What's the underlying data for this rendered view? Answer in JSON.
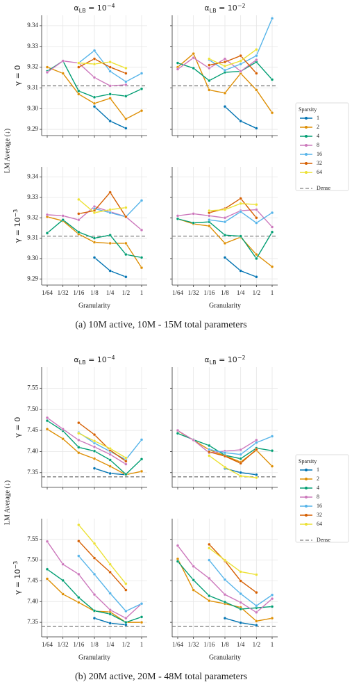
{
  "figures": [
    {
      "ylabel": "LM Average (↓)",
      "caption": "(a) 10M active, 10M - 15M total parameters"
    },
    {
      "ylabel": "LM Average (↓)",
      "caption": "(b) 20M active, 20M - 48M total parameters"
    }
  ],
  "chart_data": [
    {
      "type": "line",
      "title": {
        "main": "α",
        "sub": "LB",
        "mid": " = 10",
        "sup": "−4"
      },
      "ylabel": {
        "main": "γ = 0"
      },
      "ylim": [
        9.287,
        9.345
      ],
      "yticks": [
        9.29,
        {
          "value": 9.3,
          "label": "9.30"
        },
        9.31,
        9.32,
        9.33,
        9.34
      ],
      "grid": true,
      "series": [
        {
          "color": "#0173b2",
          "values": [
            null,
            null,
            null,
            9.301,
            9.294,
            9.2905,
            null
          ]
        },
        {
          "color": "#de8f05",
          "values": [
            9.32,
            9.317,
            9.307,
            9.3025,
            9.305,
            9.295,
            9.299
          ]
        },
        {
          "color": "#029e73",
          "values": [
            9.318,
            9.323,
            9.3085,
            9.3055,
            9.307,
            9.306,
            9.3095
          ]
        },
        {
          "color": "#cc78bc",
          "values": [
            9.3175,
            9.323,
            9.322,
            9.315,
            9.311,
            9.3115,
            null
          ]
        },
        {
          "color": "#56b4e9",
          "values": [
            null,
            null,
            9.322,
            9.328,
            9.318,
            9.313,
            9.317
          ]
        },
        {
          "color": "#d55e00",
          "values": [
            null,
            null,
            9.32,
            9.324,
            9.32,
            9.317,
            null
          ]
        },
        {
          "color": "#ece133",
          "values": [
            null,
            null,
            9.322,
            9.3215,
            9.3225,
            9.3195,
            null
          ]
        }
      ],
      "reference": {
        "value": 9.311,
        "color": "#7f7f7f"
      }
    },
    {
      "type": "line",
      "title": {
        "main": "α",
        "sub": "LB",
        "mid": " = 10",
        "sup": "−2"
      },
      "ylim": [
        9.287,
        9.345
      ],
      "yticks": [
        9.29,
        9.3,
        9.31,
        9.32,
        9.33,
        9.34
      ],
      "grid": true,
      "legend": "right",
      "legend_title": "Sparsity",
      "series": [
        {
          "name": "1",
          "color": "#0173b2",
          "values": [
            null,
            null,
            null,
            9.301,
            9.294,
            9.2905,
            null
          ]
        },
        {
          "name": "2",
          "color": "#de8f05",
          "values": [
            9.32,
            9.3265,
            9.309,
            9.3075,
            9.317,
            9.309,
            9.298
          ]
        },
        {
          "name": "4",
          "color": "#029e73",
          "values": [
            9.322,
            9.3195,
            9.3135,
            9.3175,
            9.318,
            9.3225,
            9.314
          ]
        },
        {
          "name": "8",
          "color": "#cc78bc",
          "values": [
            9.319,
            9.3245,
            9.3195,
            9.324,
            9.318,
            9.3235,
            null
          ]
        },
        {
          "name": "16",
          "color": "#56b4e9",
          "values": [
            null,
            null,
            9.3235,
            9.3185,
            9.3215,
            9.3255,
            9.3435
          ]
        },
        {
          "name": "32",
          "color": "#d55e00",
          "values": [
            null,
            null,
            9.321,
            9.3225,
            9.3255,
            9.317,
            null
          ]
        },
        {
          "name": "64",
          "color": "#ece133",
          "values": [
            null,
            null,
            9.324,
            9.3205,
            9.323,
            9.3285,
            null
          ]
        }
      ],
      "reference": {
        "name": "Dense",
        "value": 9.311,
        "color": "#7f7f7f"
      }
    },
    {
      "type": "line",
      "ylabel": {
        "main": "γ = 10",
        "sup": "−3"
      },
      "xlabel": "Granularity",
      "categories": [
        "1/64",
        "1/32",
        "1/16",
        "1/8",
        "1/4",
        "1/2",
        "1"
      ],
      "ylim": [
        9.287,
        9.345
      ],
      "yticks": [
        9.29,
        {
          "value": 9.3,
          "label": "9.30"
        },
        9.31,
        9.32,
        9.33,
        9.34
      ],
      "grid": true,
      "series": [
        {
          "color": "#0173b2",
          "values": [
            null,
            null,
            null,
            9.3005,
            9.294,
            9.291,
            null
          ]
        },
        {
          "color": "#de8f05",
          "values": [
            9.3205,
            9.3185,
            9.312,
            9.308,
            9.3075,
            9.3075,
            9.2955
          ]
        },
        {
          "color": "#029e73",
          "values": [
            9.3125,
            9.319,
            9.313,
            9.31,
            9.3115,
            9.302,
            9.3005
          ]
        },
        {
          "color": "#cc78bc",
          "values": [
            9.3215,
            9.321,
            9.319,
            9.3255,
            9.323,
            9.3205,
            9.314
          ]
        },
        {
          "color": "#56b4e9",
          "values": [
            null,
            null,
            null,
            9.3245,
            9.3225,
            9.3205,
            9.3285
          ]
        },
        {
          "color": "#d55e00",
          "values": [
            null,
            null,
            9.322,
            9.3235,
            9.3325,
            9.3205,
            null
          ]
        },
        {
          "color": "#ece133",
          "values": [
            null,
            null,
            9.329,
            9.3225,
            9.324,
            9.325,
            null
          ]
        }
      ],
      "reference": {
        "value": 9.311,
        "color": "#7f7f7f"
      }
    },
    {
      "type": "line",
      "xlabel": "Granularity",
      "categories": [
        "1/64",
        "1/32",
        "1/16",
        "1/8",
        "1/4",
        "1/2",
        "1"
      ],
      "ylim": [
        9.287,
        9.345
      ],
      "yticks": [
        9.29,
        9.3,
        9.31,
        9.32,
        9.33,
        9.34
      ],
      "grid": true,
      "series": [
        {
          "color": "#0173b2",
          "values": [
            null,
            null,
            null,
            9.3005,
            9.294,
            9.291,
            null
          ]
        },
        {
          "color": "#de8f05",
          "values": [
            9.3195,
            9.317,
            9.316,
            9.3075,
            9.3105,
            9.302,
            9.296
          ]
        },
        {
          "color": "#029e73",
          "values": [
            9.3195,
            9.3175,
            9.318,
            9.3115,
            9.311,
            9.3,
            9.313
          ]
        },
        {
          "color": "#cc78bc",
          "values": [
            9.321,
            9.322,
            9.321,
            9.32,
            9.3235,
            9.324,
            9.3155
          ]
        },
        {
          "color": "#56b4e9",
          "values": [
            null,
            null,
            9.319,
            9.318,
            9.323,
            9.3175,
            9.3225
          ]
        },
        {
          "color": "#d55e00",
          "values": [
            null,
            null,
            9.3225,
            9.3245,
            9.3295,
            9.32,
            null
          ]
        },
        {
          "color": "#ece133",
          "values": [
            null,
            null,
            9.3235,
            9.324,
            9.327,
            9.3265,
            null
          ]
        }
      ],
      "reference": {
        "value": 9.311,
        "color": "#7f7f7f"
      }
    },
    {
      "type": "line",
      "title": {
        "main": "α",
        "sub": "LB",
        "mid": " = 10",
        "sup": "−4"
      },
      "ylabel": {
        "main": "γ = 0"
      },
      "ylim": [
        7.315,
        7.6
      ],
      "yticks": [
        7.35,
        {
          "value": 7.4,
          "label": "7.40"
        },
        7.45,
        {
          "value": 7.5,
          "label": "7.50"
        },
        7.55
      ],
      "grid": true,
      "series": [
        {
          "color": "#0173b2",
          "values": [
            null,
            null,
            null,
            7.36,
            7.348,
            7.345,
            null
          ]
        },
        {
          "color": "#de8f05",
          "values": [
            7.453,
            7.43,
            7.397,
            7.383,
            7.365,
            7.345,
            7.353
          ]
        },
        {
          "color": "#029e73",
          "values": [
            7.473,
            7.449,
            7.41,
            7.401,
            7.38,
            7.346,
            7.382
          ]
        },
        {
          "color": "#cc78bc",
          "values": [
            7.48,
            7.453,
            7.427,
            7.411,
            7.393,
            7.37,
            null
          ]
        },
        {
          "color": "#56b4e9",
          "values": [
            null,
            null,
            7.445,
            7.42,
            7.4,
            7.381,
            7.428
          ]
        },
        {
          "color": "#d55e00",
          "values": [
            null,
            null,
            7.468,
            7.44,
            7.403,
            7.377,
            null
          ]
        },
        {
          "color": "#ece133",
          "values": [
            null,
            null,
            7.443,
            7.425,
            7.407,
            7.385,
            null
          ]
        }
      ],
      "reference": {
        "value": 7.34,
        "color": "#7f7f7f"
      }
    },
    {
      "type": "line",
      "title": {
        "main": "α",
        "sub": "LB",
        "mid": " = 10",
        "sup": "−2"
      },
      "ylim": [
        7.315,
        7.6
      ],
      "yticks": [
        7.35,
        7.4,
        7.45,
        7.5,
        7.55
      ],
      "grid": true,
      "legend": "right",
      "legend_title": "Sparsity",
      "series": [
        {
          "name": "1",
          "color": "#0173b2",
          "values": [
            null,
            null,
            null,
            7.36,
            7.35,
            7.345,
            null
          ]
        },
        {
          "name": "2",
          "color": "#de8f05",
          "values": [
            7.449,
            7.427,
            7.404,
            7.39,
            7.375,
            7.403,
            7.365
          ]
        },
        {
          "name": "4",
          "color": "#029e73",
          "values": [
            7.443,
            7.428,
            7.414,
            7.391,
            7.383,
            7.408,
            7.402
          ]
        },
        {
          "name": "8",
          "color": "#cc78bc",
          "values": [
            7.45,
            7.427,
            7.397,
            7.401,
            7.404,
            7.427,
            null
          ]
        },
        {
          "name": "16",
          "color": "#56b4e9",
          "values": [
            null,
            null,
            7.405,
            7.397,
            7.393,
            7.421,
            7.436
          ]
        },
        {
          "name": "32",
          "color": "#d55e00",
          "values": [
            null,
            null,
            7.399,
            7.389,
            7.372,
            7.405,
            null
          ]
        },
        {
          "name": "64",
          "color": "#ece133",
          "values": [
            null,
            null,
            7.39,
            7.363,
            7.342,
            7.338,
            null
          ]
        }
      ],
      "reference": {
        "name": "Dense",
        "value": 7.34,
        "color": "#7f7f7f"
      }
    },
    {
      "type": "line",
      "ylabel": {
        "main": "γ = 10",
        "sup": "−3"
      },
      "xlabel": "Granularity",
      "categories": [
        "1/64",
        "1/32",
        "1/16",
        "1/8",
        "1/4",
        "1/2",
        "1"
      ],
      "ylim": [
        7.315,
        7.6
      ],
      "yticks": [
        7.35,
        {
          "value": 7.4,
          "label": "7.40"
        },
        7.45,
        {
          "value": 7.5,
          "label": "7.50"
        },
        7.55
      ],
      "grid": true,
      "series": [
        {
          "color": "#0173b2",
          "values": [
            null,
            null,
            null,
            7.36,
            7.348,
            7.344,
            null
          ]
        },
        {
          "color": "#de8f05",
          "values": [
            7.455,
            7.418,
            7.398,
            7.377,
            7.375,
            7.35,
            7.35
          ]
        },
        {
          "color": "#029e73",
          "values": [
            7.478,
            7.451,
            7.41,
            7.378,
            7.37,
            7.35,
            7.363
          ]
        },
        {
          "color": "#cc78bc",
          "values": [
            7.545,
            7.49,
            7.466,
            7.417,
            7.38,
            7.36,
            7.395
          ]
        },
        {
          "color": "#56b4e9",
          "values": [
            null,
            null,
            7.51,
            7.466,
            7.42,
            7.377,
            7.395
          ]
        },
        {
          "color": "#d55e00",
          "values": [
            null,
            null,
            7.546,
            7.505,
            7.471,
            7.428,
            null
          ]
        },
        {
          "color": "#ece133",
          "values": [
            null,
            null,
            7.585,
            7.54,
            7.49,
            7.443,
            null
          ]
        }
      ],
      "reference": {
        "value": 7.34,
        "color": "#7f7f7f"
      }
    },
    {
      "type": "line",
      "xlabel": "Granularity",
      "categories": [
        "1/64",
        "1/32",
        "1/16",
        "1/8",
        "1/4",
        "1/2",
        "1"
      ],
      "ylim": [
        7.315,
        7.6
      ],
      "yticks": [
        7.35,
        7.4,
        7.45,
        7.5,
        7.55
      ],
      "grid": true,
      "series": [
        {
          "color": "#0173b2",
          "values": [
            null,
            null,
            null,
            7.36,
            7.349,
            7.343,
            null
          ]
        },
        {
          "color": "#de8f05",
          "values": [
            7.503,
            7.428,
            7.402,
            7.395,
            7.386,
            7.353,
            7.36
          ]
        },
        {
          "color": "#029e73",
          "values": [
            7.497,
            7.452,
            7.414,
            7.399,
            7.382,
            7.385,
            7.388
          ]
        },
        {
          "color": "#cc78bc",
          "values": [
            7.535,
            7.485,
            7.456,
            7.417,
            7.398,
            7.374,
            7.407
          ]
        },
        {
          "color": "#56b4e9",
          "values": [
            null,
            null,
            7.5,
            7.453,
            7.419,
            7.39,
            7.416
          ]
        },
        {
          "color": "#d55e00",
          "values": [
            null,
            null,
            7.538,
            7.498,
            7.45,
            7.422,
            null
          ]
        },
        {
          "color": "#ece133",
          "values": [
            null,
            null,
            7.529,
            7.5,
            7.472,
            7.465,
            null
          ]
        }
      ],
      "reference": {
        "value": 7.34,
        "color": "#7f7f7f"
      }
    }
  ]
}
